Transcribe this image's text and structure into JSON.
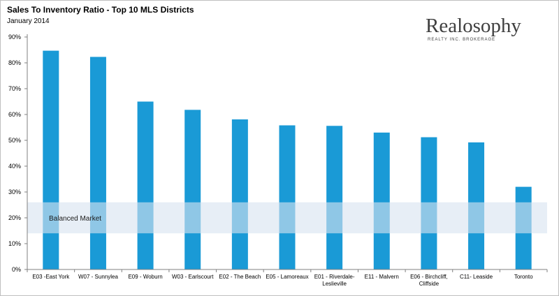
{
  "header": {
    "title": "Sales To Inventory Ratio - Top 10 MLS Districts",
    "subtitle": "January 2014"
  },
  "logo": {
    "name": "Realosophy",
    "tagline": "REALTY INC. BROKERAGE"
  },
  "chart_data": {
    "type": "bar",
    "title": "Sales To Inventory Ratio - Top 10 MLS Districts",
    "subtitle": "January 2014",
    "xlabel": "",
    "ylabel": "",
    "ylim": [
      0,
      90
    ],
    "yticks": [
      0,
      10,
      20,
      30,
      40,
      50,
      60,
      70,
      80,
      90
    ],
    "ytick_labels": [
      "0%",
      "10%",
      "20%",
      "30%",
      "40%",
      "50%",
      "60%",
      "70%",
      "80%",
      "90%"
    ],
    "categories": [
      [
        "E03 -East York"
      ],
      [
        "W07 - Sunnylea"
      ],
      [
        "E09 - Woburn"
      ],
      [
        "W03 - Earlscourt"
      ],
      [
        "E02 - The Beach"
      ],
      [
        "E05 - Lamoreaux"
      ],
      [
        "E01 - Riverdale-",
        "Leslieville"
      ],
      [
        "E11 - Malvern"
      ],
      [
        "E06 - Birchcliff,",
        "Cliffside"
      ],
      [
        "C11- Leaside"
      ],
      [
        "Toronto"
      ]
    ],
    "values": [
      84.7,
      82.3,
      65,
      61.8,
      58.1,
      55.8,
      55.6,
      53,
      51.2,
      49.2,
      32
    ],
    "bar_color": "#1a9ad6",
    "grid": false,
    "band": {
      "label": "Balanced Market",
      "from": 14,
      "to": 26,
      "color": "#d9e4f0"
    }
  }
}
